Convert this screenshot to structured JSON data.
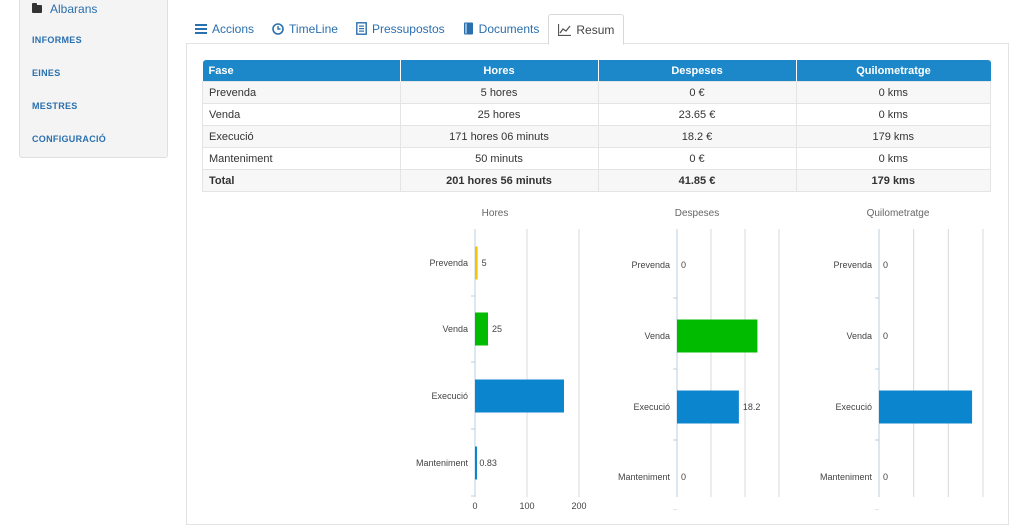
{
  "sidebar": {
    "albarans": "Albarans",
    "items": [
      "INFORMES",
      "EINES",
      "MESTRES",
      "CONFIGURACIÓ"
    ]
  },
  "tabs": [
    {
      "label": "Accions",
      "icon": "list-icon"
    },
    {
      "label": "TimeLine",
      "icon": "clock-icon"
    },
    {
      "label": "Pressupostos",
      "icon": "document-list-icon"
    },
    {
      "label": "Documents",
      "icon": "book-icon"
    },
    {
      "label": "Resum",
      "icon": "chart-icon",
      "active": true
    }
  ],
  "table": {
    "headers": [
      "Fase",
      "Hores",
      "Despeses",
      "Quilometratge"
    ],
    "rows": [
      [
        "Prevenda",
        "5 hores",
        "0 €",
        "0 kms"
      ],
      [
        "Venda",
        "25 hores",
        "23.65 €",
        "0 kms"
      ],
      [
        "Execució",
        "171 hores 06 minuts",
        "18.2 €",
        "179 kms"
      ],
      [
        "Manteniment",
        "50 minuts",
        "0 €",
        "0 kms"
      ]
    ],
    "total": [
      "Total",
      "201 hores 56 minuts",
      "41.85 €",
      "179 kms"
    ]
  },
  "colors": {
    "prevenda": "#f2c500",
    "venda": "#00bb00",
    "execucio": "#0b85cd",
    "manteniment": "#0b85cd"
  },
  "chart_data": [
    {
      "type": "bar",
      "title": "Hores",
      "categories": [
        "Prevenda",
        "Venda",
        "Execució",
        "Manteniment"
      ],
      "values": [
        5,
        25,
        171.1,
        0.83
      ],
      "value_labels": [
        "5",
        "25",
        "",
        "0.83"
      ],
      "xlim": [
        0,
        200
      ],
      "xticks": [
        "0",
        "100",
        "200"
      ]
    },
    {
      "type": "bar",
      "title": "Despeses",
      "categories": [
        "Prevenda",
        "Venda",
        "Execució",
        "Manteniment"
      ],
      "values": [
        0,
        23.65,
        18.2,
        0
      ],
      "value_labels": [
        "0",
        "",
        "18.2",
        "0"
      ],
      "xlim": [
        0,
        30
      ]
    },
    {
      "type": "bar",
      "title": "Quilometratge",
      "categories": [
        "Prevenda",
        "Venda",
        "Execució",
        "Manteniment"
      ],
      "values": [
        0,
        0,
        179,
        0
      ],
      "value_labels": [
        "0",
        "0",
        "",
        "0"
      ],
      "xlim": [
        0,
        200
      ]
    }
  ]
}
